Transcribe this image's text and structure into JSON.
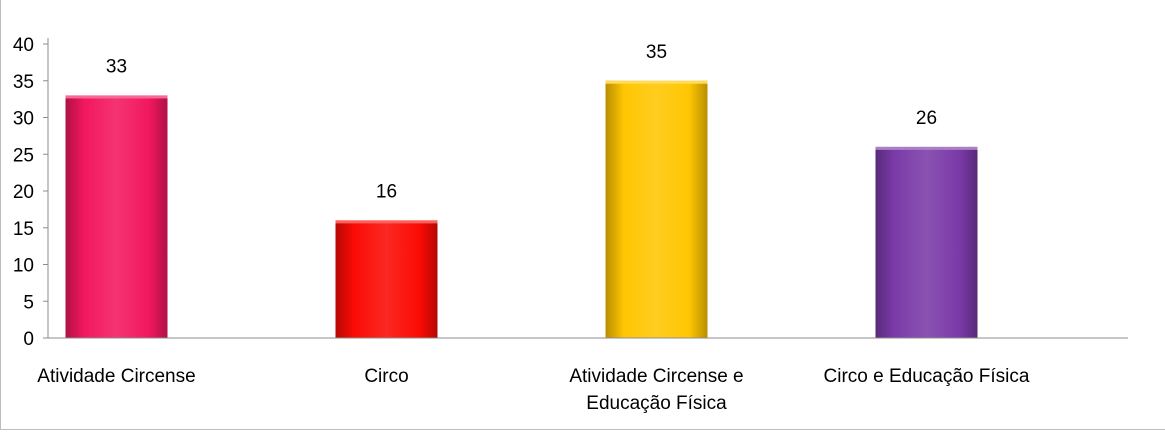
{
  "chart_data": {
    "type": "bar",
    "title": "",
    "xlabel": "",
    "ylabel": "",
    "categories": [
      [
        "Atividade Circense"
      ],
      [
        "Circo"
      ],
      [
        "Atividade Circense e",
        "Educação Física"
      ],
      [
        "Circo e Educação Física"
      ]
    ],
    "values": [
      33,
      16,
      35,
      26
    ],
    "value_labels": [
      "33",
      "16",
      "35",
      "26"
    ],
    "ylim": [
      0,
      40
    ],
    "yticks": [
      "0",
      "5",
      "10",
      "15",
      "20",
      "25",
      "30",
      "35",
      "40"
    ],
    "colors": [
      "#f2175f",
      "#fb0b05",
      "#ffc602",
      "#7a3aa8"
    ],
    "grid": false,
    "legend": "none"
  }
}
